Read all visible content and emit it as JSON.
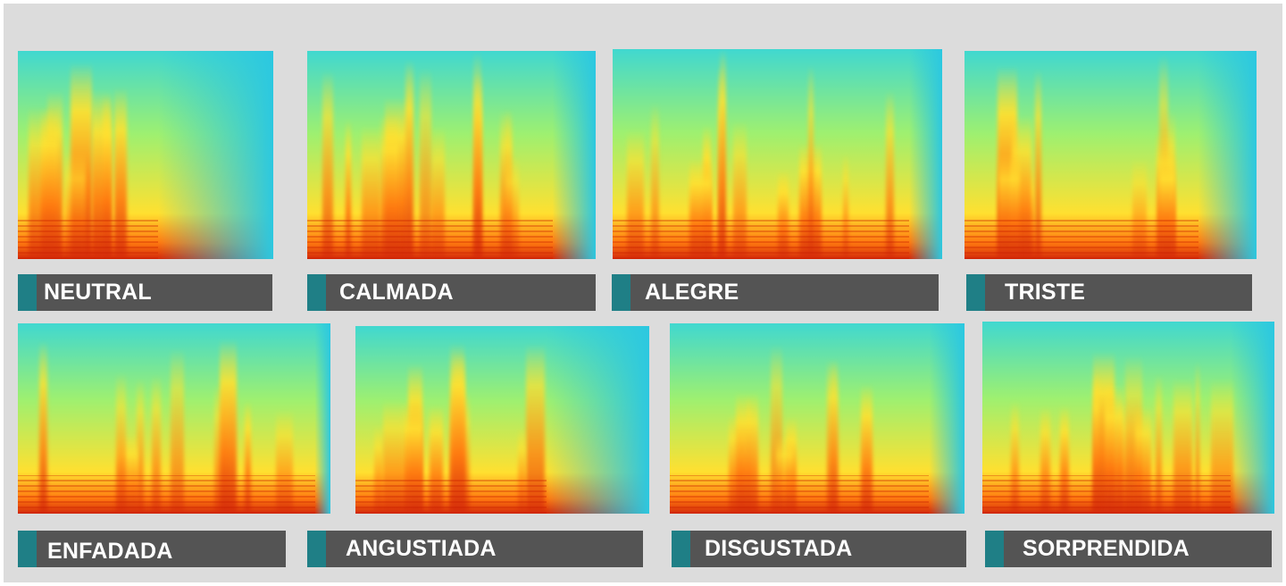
{
  "colors": {
    "background": "#dcdcdc",
    "label_bar": "#545454",
    "label_accent": "#1f7f86",
    "spectrogram_colormap": [
      "#d42a0a",
      "#ff7a10",
      "#ffe030",
      "#9ef070",
      "#40d8d0",
      "#2cc8e0"
    ]
  },
  "panels": [
    {
      "label": "NEUTRAL"
    },
    {
      "label": "CALMADA"
    },
    {
      "label": "ALEGRE"
    },
    {
      "label": "TRISTE"
    },
    {
      "label": "ENFADADA"
    },
    {
      "label": "ANGUSTIADA"
    },
    {
      "label": "DISGUSTADA"
    },
    {
      "label": "SORPRENDIDA"
    }
  ]
}
